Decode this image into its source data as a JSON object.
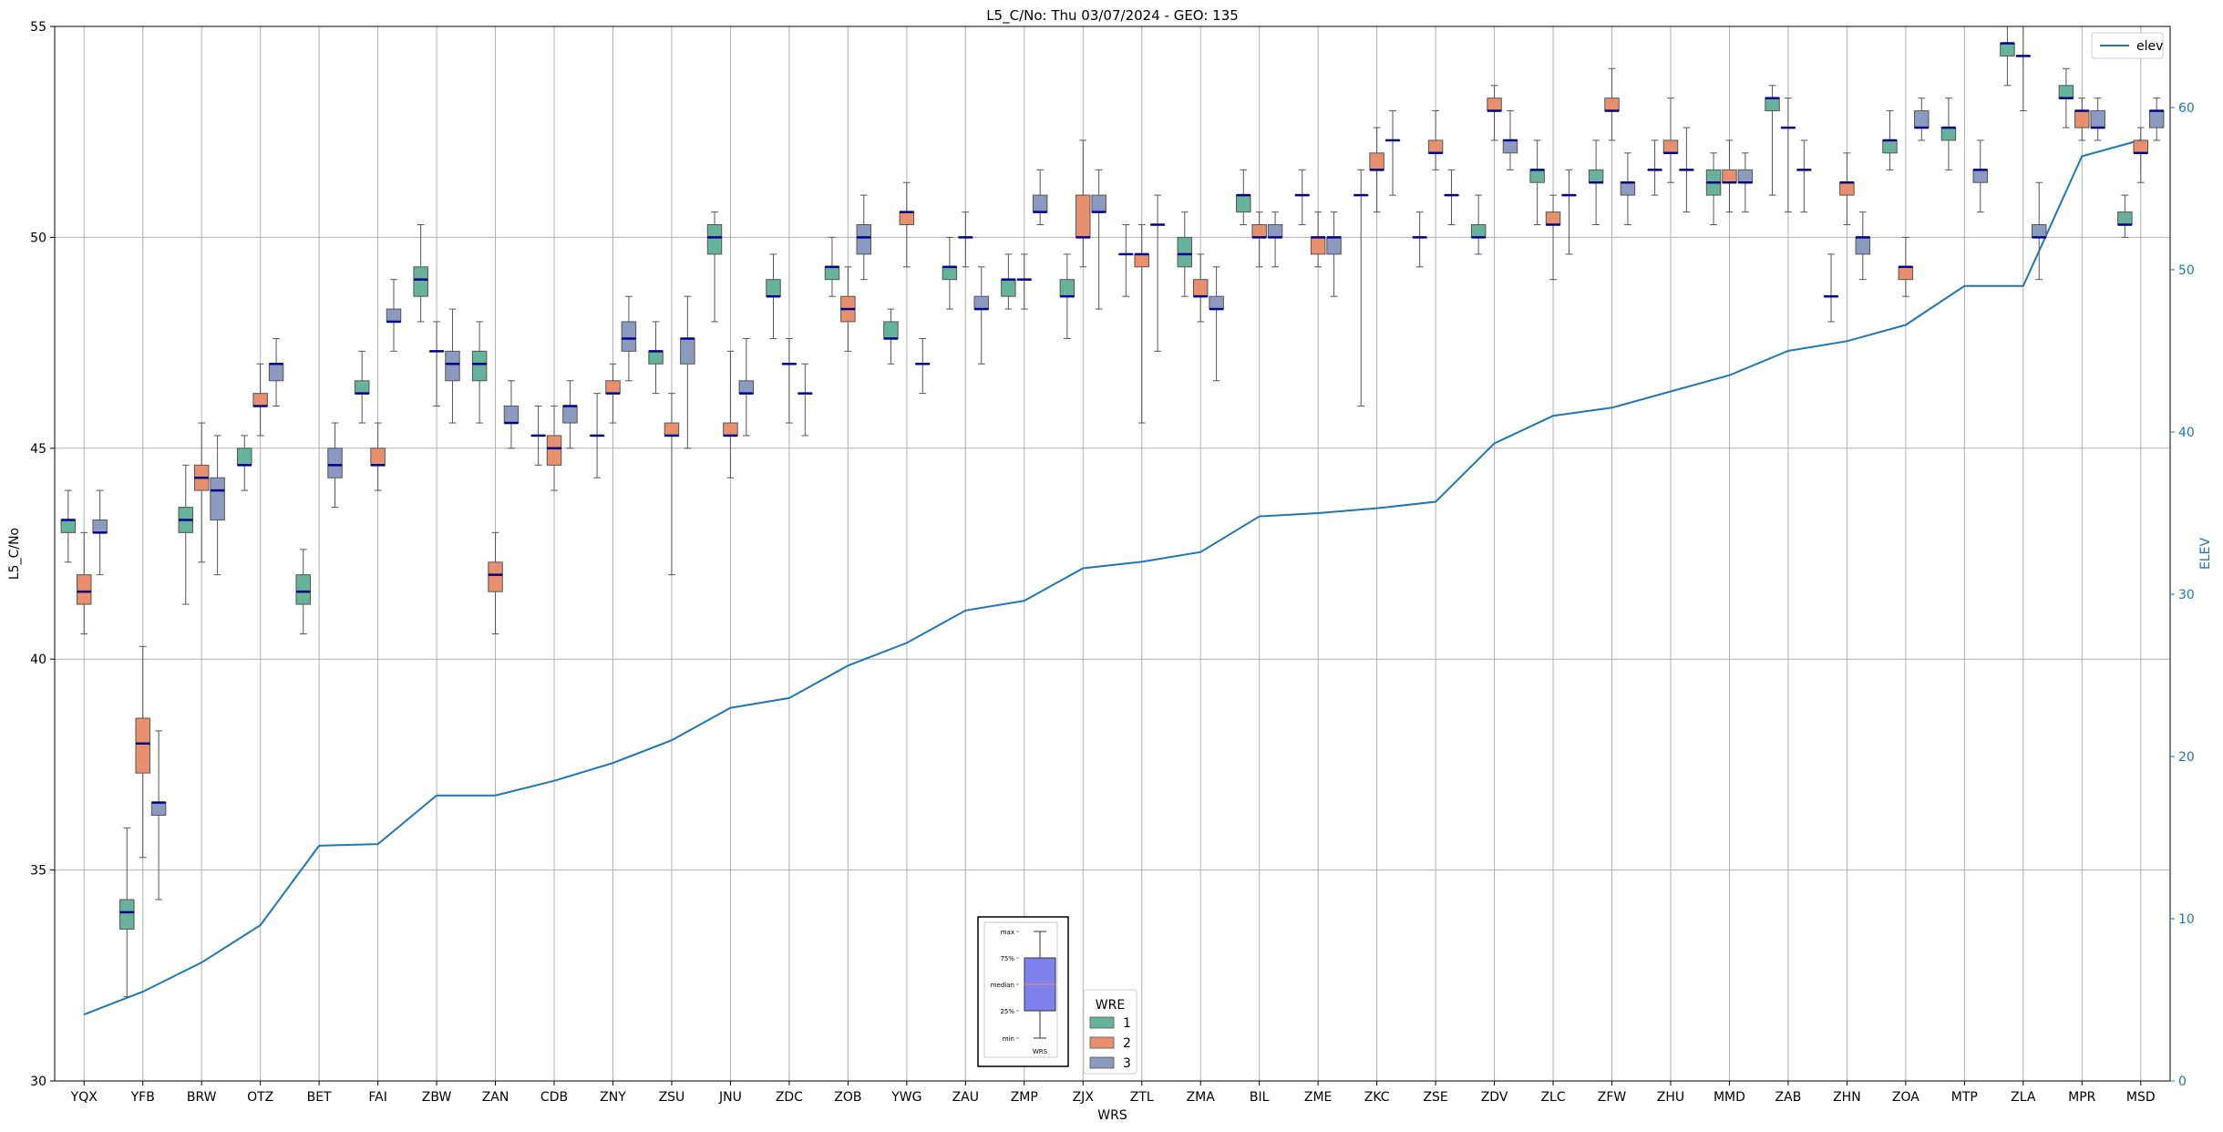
{
  "chart_data": {
    "type": "box",
    "title": "L5_C/No: Thu 03/07/2024 - GEO: 135",
    "xlabel": "WRS",
    "ylabel": "L5_C/No",
    "y2label": "ELEV",
    "ylim": [
      30,
      55
    ],
    "y2lim": [
      0,
      65
    ],
    "yticks": [
      30,
      35,
      40,
      45,
      50,
      55
    ],
    "y2ticks": [
      0,
      10,
      20,
      30,
      40,
      50,
      60
    ],
    "grid": true,
    "colors": {
      "1": "#66b29a",
      "2": "#e8906d",
      "3": "#8d9ac0",
      "elev": "#1f77b4",
      "median": "#00008b"
    },
    "categories": [
      "YQX",
      "YFB",
      "BRW",
      "OTZ",
      "BET",
      "FAI",
      "ZBW",
      "ZAN",
      "CDB",
      "ZNY",
      "ZSU",
      "JNU",
      "ZDC",
      "ZOB",
      "YWG",
      "ZAU",
      "ZMP",
      "ZJX",
      "ZTL",
      "ZMA",
      "BIL",
      "ZME",
      "ZKC",
      "ZSE",
      "ZDV",
      "ZLC",
      "ZFW",
      "ZHU",
      "MMD",
      "ZAB",
      "ZHN",
      "ZOA",
      "MTP",
      "ZLA",
      "MPR",
      "MSD"
    ],
    "boxes": [
      {
        "station": "YQX",
        "wre": "1",
        "min": 42.3,
        "q1": 43.0,
        "median": 43.3,
        "q3": 43.3,
        "max": 44.0
      },
      {
        "station": "YQX",
        "wre": "2",
        "min": 40.6,
        "q1": 41.3,
        "median": 41.6,
        "q3": 42.0,
        "max": 43.0
      },
      {
        "station": "YQX",
        "wre": "3",
        "min": 42.0,
        "q1": 43.0,
        "median": 43.0,
        "q3": 43.3,
        "max": 44.0
      },
      {
        "station": "YFB",
        "wre": "1",
        "min": 32.0,
        "q1": 33.6,
        "median": 34.0,
        "q3": 34.3,
        "max": 36.0
      },
      {
        "station": "YFB",
        "wre": "2",
        "min": 35.3,
        "q1": 37.3,
        "median": 38.0,
        "q3": 38.6,
        "max": 40.3
      },
      {
        "station": "YFB",
        "wre": "3",
        "min": 34.3,
        "q1": 36.3,
        "median": 36.6,
        "q3": 36.6,
        "max": 38.3
      },
      {
        "station": "BRW",
        "wre": "1",
        "min": 41.3,
        "q1": 43.0,
        "median": 43.3,
        "q3": 43.6,
        "max": 44.6
      },
      {
        "station": "BRW",
        "wre": "2",
        "min": 42.3,
        "q1": 44.0,
        "median": 44.3,
        "q3": 44.6,
        "max": 45.6
      },
      {
        "station": "BRW",
        "wre": "3",
        "min": 42.0,
        "q1": 43.3,
        "median": 44.0,
        "q3": 44.3,
        "max": 45.3
      },
      {
        "station": "OTZ",
        "wre": "1",
        "min": 44.0,
        "q1": 44.6,
        "median": 44.6,
        "q3": 45.0,
        "max": 45.3
      },
      {
        "station": "OTZ",
        "wre": "2",
        "min": 45.3,
        "q1": 46.0,
        "median": 46.0,
        "q3": 46.3,
        "max": 47.0
      },
      {
        "station": "OTZ",
        "wre": "3",
        "min": 46.0,
        "q1": 46.6,
        "median": 47.0,
        "q3": 47.0,
        "max": 47.6
      },
      {
        "station": "BET",
        "wre": "1",
        "min": 40.6,
        "q1": 41.3,
        "median": 41.6,
        "q3": 42.0,
        "max": 42.6
      },
      {
        "station": "BET",
        "wre": "3",
        "min": 43.6,
        "q1": 44.3,
        "median": 44.6,
        "q3": 45.0,
        "max": 45.6
      },
      {
        "station": "FAI",
        "wre": "1",
        "min": 45.6,
        "q1": 46.3,
        "median": 46.3,
        "q3": 46.6,
        "max": 47.3
      },
      {
        "station": "FAI",
        "wre": "2",
        "min": 44.0,
        "q1": 44.6,
        "median": 44.6,
        "q3": 45.0,
        "max": 45.6
      },
      {
        "station": "FAI",
        "wre": "3",
        "min": 47.3,
        "q1": 48.0,
        "median": 48.0,
        "q3": 48.3,
        "max": 49.0
      },
      {
        "station": "ZBW",
        "wre": "1",
        "min": 48.0,
        "q1": 48.6,
        "median": 49.0,
        "q3": 49.3,
        "max": 50.3
      },
      {
        "station": "ZBW",
        "wre": "2",
        "min": 46.0,
        "q1": 47.3,
        "median": 47.3,
        "q3": 47.3,
        "max": 48.0
      },
      {
        "station": "ZBW",
        "wre": "3",
        "min": 45.6,
        "q1": 46.6,
        "median": 47.0,
        "q3": 47.3,
        "max": 48.3
      },
      {
        "station": "ZAN",
        "wre": "1",
        "min": 45.6,
        "q1": 46.6,
        "median": 47.0,
        "q3": 47.3,
        "max": 48.0
      },
      {
        "station": "ZAN",
        "wre": "2",
        "min": 40.6,
        "q1": 41.6,
        "median": 42.0,
        "q3": 42.3,
        "max": 43.0
      },
      {
        "station": "ZAN",
        "wre": "3",
        "min": 45.0,
        "q1": 45.6,
        "median": 45.6,
        "q3": 46.0,
        "max": 46.6
      },
      {
        "station": "CDB",
        "wre": "1",
        "min": 44.6,
        "q1": 45.3,
        "median": 45.3,
        "q3": 45.3,
        "max": 46.0
      },
      {
        "station": "CDB",
        "wre": "2",
        "min": 44.0,
        "q1": 44.6,
        "median": 45.0,
        "q3": 45.3,
        "max": 46.0
      },
      {
        "station": "CDB",
        "wre": "3",
        "min": 45.0,
        "q1": 45.6,
        "median": 46.0,
        "q3": 46.0,
        "max": 46.6
      },
      {
        "station": "ZNY",
        "wre": "1",
        "min": 44.3,
        "q1": 45.3,
        "median": 45.3,
        "q3": 45.3,
        "max": 46.3
      },
      {
        "station": "ZNY",
        "wre": "2",
        "min": 45.6,
        "q1": 46.3,
        "median": 46.3,
        "q3": 46.6,
        "max": 47.0
      },
      {
        "station": "ZNY",
        "wre": "3",
        "min": 46.6,
        "q1": 47.3,
        "median": 47.6,
        "q3": 48.0,
        "max": 48.6
      },
      {
        "station": "ZSU",
        "wre": "1",
        "min": 46.3,
        "q1": 47.0,
        "median": 47.3,
        "q3": 47.3,
        "max": 48.0
      },
      {
        "station": "ZSU",
        "wre": "2",
        "min": 42.0,
        "q1": 45.3,
        "median": 45.3,
        "q3": 45.6,
        "max": 46.3
      },
      {
        "station": "ZSU",
        "wre": "3",
        "min": 45.0,
        "q1": 47.0,
        "median": 47.6,
        "q3": 47.6,
        "max": 48.6
      },
      {
        "station": "JNU",
        "wre": "1",
        "min": 48.0,
        "q1": 49.6,
        "median": 50.0,
        "q3": 50.3,
        "max": 50.6
      },
      {
        "station": "JNU",
        "wre": "2",
        "min": 44.3,
        "q1": 45.3,
        "median": 45.3,
        "q3": 45.6,
        "max": 47.3
      },
      {
        "station": "JNU",
        "wre": "3",
        "min": 45.3,
        "q1": 46.3,
        "median": 46.3,
        "q3": 46.6,
        "max": 47.6
      },
      {
        "station": "ZDC",
        "wre": "1",
        "min": 47.6,
        "q1": 48.6,
        "median": 48.6,
        "q3": 49.0,
        "max": 49.6
      },
      {
        "station": "ZDC",
        "wre": "2",
        "min": 45.6,
        "q1": 47.0,
        "median": 47.0,
        "q3": 47.0,
        "max": 47.6
      },
      {
        "station": "ZDC",
        "wre": "3",
        "min": 45.3,
        "q1": 46.3,
        "median": 46.3,
        "q3": 46.3,
        "max": 47.0
      },
      {
        "station": "ZOB",
        "wre": "1",
        "min": 48.6,
        "q1": 49.0,
        "median": 49.3,
        "q3": 49.3,
        "max": 50.0
      },
      {
        "station": "ZOB",
        "wre": "2",
        "min": 47.3,
        "q1": 48.0,
        "median": 48.3,
        "q3": 48.6,
        "max": 49.3
      },
      {
        "station": "ZOB",
        "wre": "3",
        "min": 49.0,
        "q1": 49.6,
        "median": 50.0,
        "q3": 50.3,
        "max": 51.0
      },
      {
        "station": "YWG",
        "wre": "1",
        "min": 47.0,
        "q1": 47.6,
        "median": 47.6,
        "q3": 48.0,
        "max": 48.3
      },
      {
        "station": "YWG",
        "wre": "2",
        "min": 49.3,
        "q1": 50.3,
        "median": 50.6,
        "q3": 50.6,
        "max": 51.3
      },
      {
        "station": "YWG",
        "wre": "3",
        "min": 46.3,
        "q1": 47.0,
        "median": 47.0,
        "q3": 47.0,
        "max": 47.6
      },
      {
        "station": "ZAU",
        "wre": "1",
        "min": 48.3,
        "q1": 49.0,
        "median": 49.3,
        "q3": 49.3,
        "max": 50.0
      },
      {
        "station": "ZAU",
        "wre": "2",
        "min": 49.3,
        "q1": 50.0,
        "median": 50.0,
        "q3": 50.0,
        "max": 50.6
      },
      {
        "station": "ZAU",
        "wre": "3",
        "min": 47.0,
        "q1": 48.3,
        "median": 48.3,
        "q3": 48.6,
        "max": 49.3
      },
      {
        "station": "ZMP",
        "wre": "1",
        "min": 48.3,
        "q1": 48.6,
        "median": 49.0,
        "q3": 49.0,
        "max": 49.6
      },
      {
        "station": "ZMP",
        "wre": "2",
        "min": 48.3,
        "q1": 49.0,
        "median": 49.0,
        "q3": 49.0,
        "max": 49.6
      },
      {
        "station": "ZMP",
        "wre": "3",
        "min": 50.3,
        "q1": 50.6,
        "median": 50.6,
        "q3": 51.0,
        "max": 51.6
      },
      {
        "station": "ZJX",
        "wre": "1",
        "min": 47.6,
        "q1": 48.6,
        "median": 48.6,
        "q3": 49.0,
        "max": 49.6
      },
      {
        "station": "ZJX",
        "wre": "2",
        "min": 49.3,
        "q1": 50.0,
        "median": 50.0,
        "q3": 51.0,
        "max": 52.3
      },
      {
        "station": "ZJX",
        "wre": "3",
        "min": 48.3,
        "q1": 50.6,
        "median": 50.6,
        "q3": 51.0,
        "max": 51.6
      },
      {
        "station": "ZTL",
        "wre": "1",
        "min": 48.6,
        "q1": 49.6,
        "median": 49.6,
        "q3": 49.6,
        "max": 50.3
      },
      {
        "station": "ZTL",
        "wre": "2",
        "min": 45.6,
        "q1": 49.3,
        "median": 49.6,
        "q3": 49.6,
        "max": 50.3
      },
      {
        "station": "ZTL",
        "wre": "3",
        "min": 47.3,
        "q1": 50.3,
        "median": 50.3,
        "q3": 50.3,
        "max": 51.0
      },
      {
        "station": "ZMA",
        "wre": "1",
        "min": 48.6,
        "q1": 49.3,
        "median": 49.6,
        "q3": 50.0,
        "max": 50.6
      },
      {
        "station": "ZMA",
        "wre": "2",
        "min": 48.0,
        "q1": 48.6,
        "median": 48.6,
        "q3": 49.0,
        "max": 49.6
      },
      {
        "station": "ZMA",
        "wre": "3",
        "min": 46.6,
        "q1": 48.3,
        "median": 48.3,
        "q3": 48.6,
        "max": 49.3
      },
      {
        "station": "BIL",
        "wre": "1",
        "min": 50.3,
        "q1": 50.6,
        "median": 51.0,
        "q3": 51.0,
        "max": 51.6
      },
      {
        "station": "BIL",
        "wre": "2",
        "min": 49.3,
        "q1": 50.0,
        "median": 50.0,
        "q3": 50.3,
        "max": 50.6
      },
      {
        "station": "BIL",
        "wre": "3",
        "min": 49.3,
        "q1": 50.0,
        "median": 50.0,
        "q3": 50.3,
        "max": 50.6
      },
      {
        "station": "ZME",
        "wre": "1",
        "min": 50.3,
        "q1": 51.0,
        "median": 51.0,
        "q3": 51.0,
        "max": 51.6
      },
      {
        "station": "ZME",
        "wre": "2",
        "min": 49.3,
        "q1": 49.6,
        "median": 50.0,
        "q3": 50.0,
        "max": 50.6
      },
      {
        "station": "ZME",
        "wre": "3",
        "min": 48.6,
        "q1": 49.6,
        "median": 50.0,
        "q3": 50.0,
        "max": 50.6
      },
      {
        "station": "ZKC",
        "wre": "1",
        "min": 46.0,
        "q1": 51.0,
        "median": 51.0,
        "q3": 51.0,
        "max": 51.6
      },
      {
        "station": "ZKC",
        "wre": "2",
        "min": 50.6,
        "q1": 51.6,
        "median": 51.6,
        "q3": 52.0,
        "max": 52.6
      },
      {
        "station": "ZKC",
        "wre": "3",
        "min": 51.0,
        "q1": 52.3,
        "median": 52.3,
        "q3": 52.3,
        "max": 53.0
      },
      {
        "station": "ZSE",
        "wre": "1",
        "min": 49.3,
        "q1": 50.0,
        "median": 50.0,
        "q3": 50.0,
        "max": 50.6
      },
      {
        "station": "ZSE",
        "wre": "2",
        "min": 51.6,
        "q1": 52.0,
        "median": 52.0,
        "q3": 52.3,
        "max": 53.0
      },
      {
        "station": "ZSE",
        "wre": "3",
        "min": 50.3,
        "q1": 51.0,
        "median": 51.0,
        "q3": 51.0,
        "max": 51.6
      },
      {
        "station": "ZDV",
        "wre": "1",
        "min": 49.6,
        "q1": 50.0,
        "median": 50.0,
        "q3": 50.3,
        "max": 51.0
      },
      {
        "station": "ZDV",
        "wre": "2",
        "min": 52.3,
        "q1": 53.0,
        "median": 53.0,
        "q3": 53.3,
        "max": 53.6
      },
      {
        "station": "ZDV",
        "wre": "3",
        "min": 51.6,
        "q1": 52.0,
        "median": 52.3,
        "q3": 52.3,
        "max": 53.0
      },
      {
        "station": "ZLC",
        "wre": "1",
        "min": 50.3,
        "q1": 51.3,
        "median": 51.6,
        "q3": 51.6,
        "max": 52.3
      },
      {
        "station": "ZLC",
        "wre": "2",
        "min": 49.0,
        "q1": 50.3,
        "median": 50.3,
        "q3": 50.6,
        "max": 51.0
      },
      {
        "station": "ZLC",
        "wre": "3",
        "min": 49.6,
        "q1": 51.0,
        "median": 51.0,
        "q3": 51.0,
        "max": 51.6
      },
      {
        "station": "ZFW",
        "wre": "1",
        "min": 50.3,
        "q1": 51.3,
        "median": 51.3,
        "q3": 51.6,
        "max": 52.3
      },
      {
        "station": "ZFW",
        "wre": "2",
        "min": 52.3,
        "q1": 53.0,
        "median": 53.0,
        "q3": 53.3,
        "max": 54.0
      },
      {
        "station": "ZFW",
        "wre": "3",
        "min": 50.3,
        "q1": 51.0,
        "median": 51.3,
        "q3": 51.3,
        "max": 52.0
      },
      {
        "station": "ZHU",
        "wre": "1",
        "min": 51.0,
        "q1": 51.6,
        "median": 51.6,
        "q3": 51.6,
        "max": 52.3
      },
      {
        "station": "ZHU",
        "wre": "2",
        "min": 51.3,
        "q1": 52.0,
        "median": 52.0,
        "q3": 52.3,
        "max": 53.3
      },
      {
        "station": "ZHU",
        "wre": "3",
        "min": 50.6,
        "q1": 51.6,
        "median": 51.6,
        "q3": 51.6,
        "max": 52.6
      },
      {
        "station": "MMD",
        "wre": "1",
        "min": 50.3,
        "q1": 51.0,
        "median": 51.3,
        "q3": 51.6,
        "max": 52.0
      },
      {
        "station": "MMD",
        "wre": "2",
        "min": 50.6,
        "q1": 51.3,
        "median": 51.3,
        "q3": 51.6,
        "max": 52.3
      },
      {
        "station": "MMD",
        "wre": "3",
        "min": 50.6,
        "q1": 51.3,
        "median": 51.3,
        "q3": 51.6,
        "max": 52.0
      },
      {
        "station": "ZAB",
        "wre": "1",
        "min": 51.0,
        "q1": 53.0,
        "median": 53.3,
        "q3": 53.3,
        "max": 53.6
      },
      {
        "station": "ZAB",
        "wre": "2",
        "min": 50.6,
        "q1": 52.6,
        "median": 52.6,
        "q3": 52.6,
        "max": 53.3
      },
      {
        "station": "ZAB",
        "wre": "3",
        "min": 50.6,
        "q1": 51.6,
        "median": 51.6,
        "q3": 51.6,
        "max": 52.3
      },
      {
        "station": "ZHN",
        "wre": "1",
        "min": 48.0,
        "q1": 48.6,
        "median": 48.6,
        "q3": 48.6,
        "max": 49.6
      },
      {
        "station": "ZHN",
        "wre": "2",
        "min": 50.3,
        "q1": 51.0,
        "median": 51.3,
        "q3": 51.3,
        "max": 52.0
      },
      {
        "station": "ZHN",
        "wre": "3",
        "min": 49.0,
        "q1": 49.6,
        "median": 50.0,
        "q3": 50.0,
        "max": 50.6
      },
      {
        "station": "ZOA",
        "wre": "1",
        "min": 51.6,
        "q1": 52.0,
        "median": 52.3,
        "q3": 52.3,
        "max": 53.0
      },
      {
        "station": "ZOA",
        "wre": "2",
        "min": 48.6,
        "q1": 49.0,
        "median": 49.3,
        "q3": 49.3,
        "max": 50.0
      },
      {
        "station": "ZOA",
        "wre": "3",
        "min": 52.3,
        "q1": 52.6,
        "median": 52.6,
        "q3": 53.0,
        "max": 53.3
      },
      {
        "station": "MTP",
        "wre": "1",
        "min": 51.6,
        "q1": 52.3,
        "median": 52.6,
        "q3": 52.6,
        "max": 53.3
      },
      {
        "station": "MTP",
        "wre": "3",
        "min": 50.6,
        "q1": 51.3,
        "median": 51.6,
        "q3": 51.6,
        "max": 52.3
      },
      {
        "station": "ZLA",
        "wre": "1",
        "min": 53.6,
        "q1": 54.3,
        "median": 54.6,
        "q3": 54.6,
        "max": 55.0
      },
      {
        "station": "ZLA",
        "wre": "2",
        "min": 53.0,
        "q1": 54.3,
        "median": 54.3,
        "q3": 54.3,
        "max": 55.0
      },
      {
        "station": "ZLA",
        "wre": "3",
        "min": 49.0,
        "q1": 50.0,
        "median": 50.0,
        "q3": 50.3,
        "max": 51.3
      },
      {
        "station": "MPR",
        "wre": "1",
        "min": 52.6,
        "q1": 53.3,
        "median": 53.3,
        "q3": 53.6,
        "max": 54.0
      },
      {
        "station": "MPR",
        "wre": "2",
        "min": 52.3,
        "q1": 52.6,
        "median": 53.0,
        "q3": 53.0,
        "max": 53.3
      },
      {
        "station": "MPR",
        "wre": "3",
        "min": 52.3,
        "q1": 52.6,
        "median": 52.6,
        "q3": 53.0,
        "max": 53.3
      },
      {
        "station": "MSD",
        "wre": "1",
        "min": 50.0,
        "q1": 50.3,
        "median": 50.3,
        "q3": 50.6,
        "max": 51.0
      },
      {
        "station": "MSD",
        "wre": "2",
        "min": 51.3,
        "q1": 52.0,
        "median": 52.0,
        "q3": 52.3,
        "max": 52.6
      },
      {
        "station": "MSD",
        "wre": "3",
        "min": 52.3,
        "q1": 52.6,
        "median": 53.0,
        "q3": 53.0,
        "max": 53.3
      }
    ],
    "elev_series": {
      "name": "elev",
      "axis": "right",
      "values": [
        4.1,
        5.5,
        7.3,
        9.6,
        14.5,
        14.6,
        17.6,
        17.6,
        18.5,
        19.6,
        21.0,
        23.0,
        23.6,
        25.6,
        27.0,
        29.0,
        29.6,
        31.6,
        32.0,
        32.6,
        34.8,
        35.0,
        35.3,
        35.7,
        39.3,
        41.0,
        41.5,
        42.5,
        43.5,
        45.0,
        45.6,
        46.6,
        49.0,
        49.0,
        57.0,
        58.0
      ]
    },
    "legend_wre": {
      "title": "WRE",
      "entries": [
        "1",
        "2",
        "3"
      ],
      "placement": "bottom-center"
    },
    "legend_elev": {
      "entries": [
        "elev"
      ],
      "placement": "top-right"
    },
    "inset_key": {
      "labels": [
        "max",
        "75%",
        "median",
        "25%",
        "min"
      ],
      "xlabel": "WRS",
      "placement": "bottom-center"
    }
  }
}
